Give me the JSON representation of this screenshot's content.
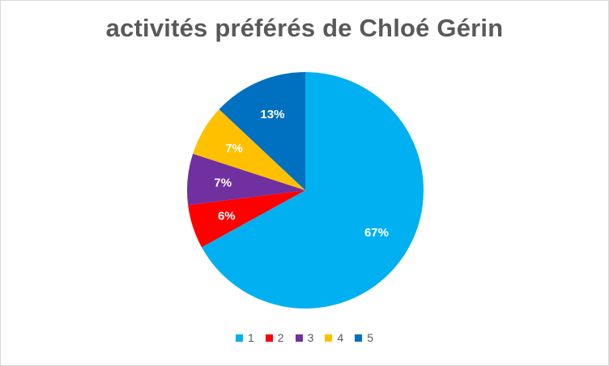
{
  "chart_data": {
    "type": "pie",
    "title": "activités préférés de Chloé Gérin",
    "categories": [
      "1",
      "2",
      "3",
      "4",
      "5"
    ],
    "values": [
      67,
      6,
      7,
      7,
      13
    ],
    "labels": [
      "67%",
      "6%",
      "7%",
      "7%",
      "13%"
    ],
    "colors": [
      "#00b0f0",
      "#ff0000",
      "#7030a0",
      "#ffc000",
      "#0070c0"
    ],
    "legend": "bottom"
  }
}
